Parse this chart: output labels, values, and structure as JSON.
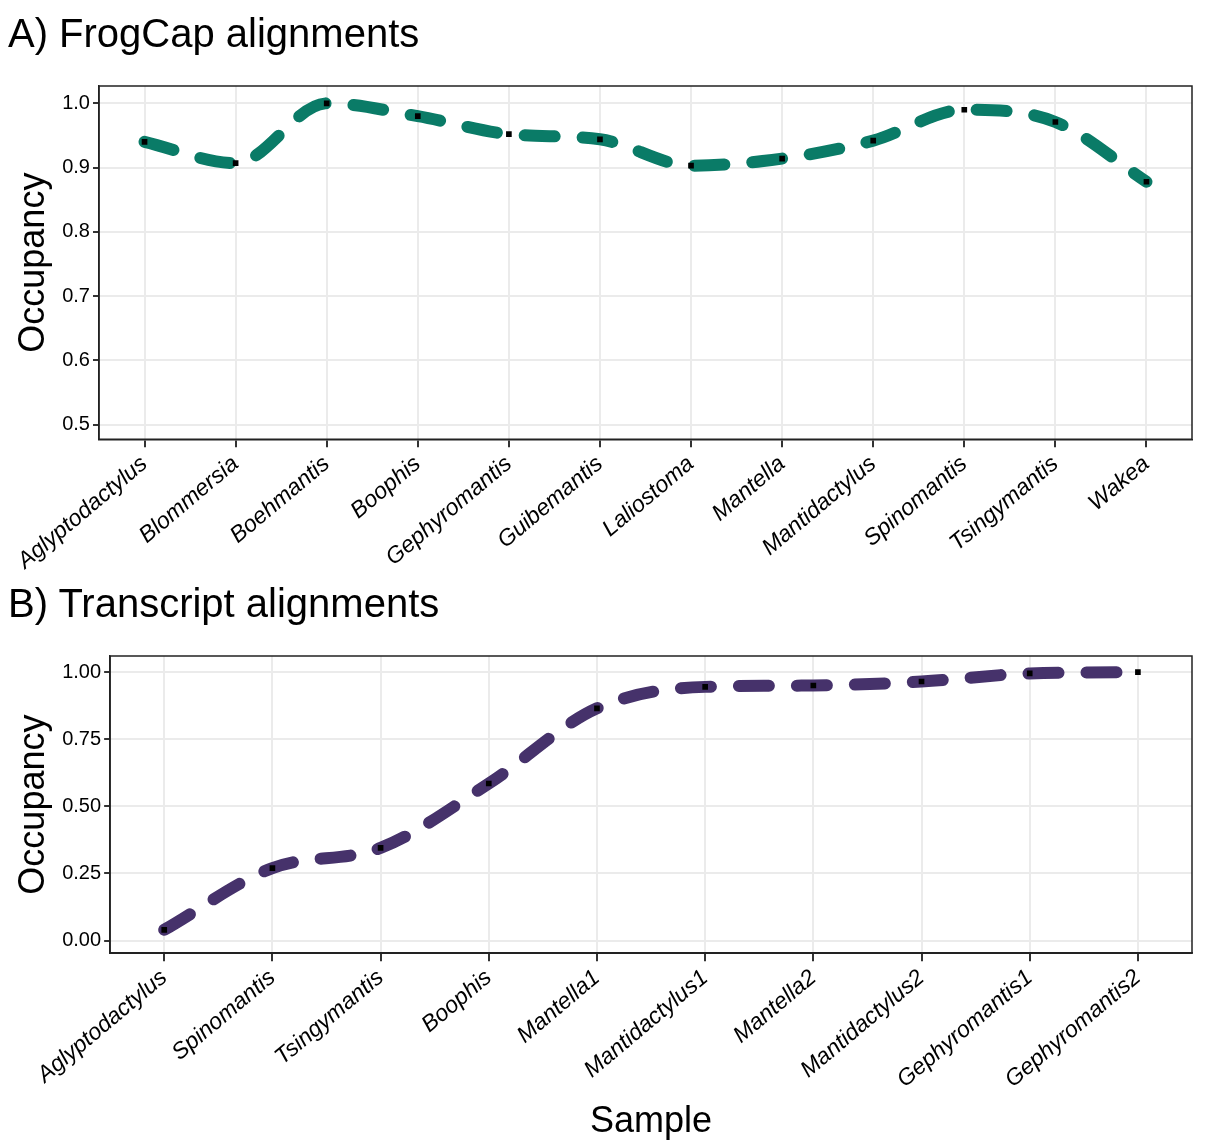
{
  "chart_data": [
    {
      "type": "line",
      "title": "A) FrogCap alignments",
      "ylabel": "Occupancy",
      "categories": [
        "Aglyptodactylus",
        "Blommersia",
        "Boehmantis",
        "Boophis",
        "Gephyromantis",
        "Guibemantis",
        "Laliostoma",
        "Mantella",
        "Mantidactylus",
        "Spinomantis",
        "Tsingymantis",
        "Wakea"
      ],
      "series": [
        {
          "color": "#0a7b67",
          "values": [
            0.94,
            0.907,
            1.0,
            0.98,
            0.952,
            0.944,
            0.903,
            0.914,
            0.942,
            0.99,
            0.971,
            0.878
          ]
        }
      ],
      "ylim": [
        0.477,
        1.027
      ],
      "yticks": [
        {
          "value": 0.5,
          "label": "0.5"
        },
        {
          "value": 0.6,
          "label": "0.6"
        },
        {
          "value": 0.7,
          "label": "0.7"
        },
        {
          "value": 0.8,
          "label": "0.8"
        },
        {
          "value": 0.9,
          "label": "0.9"
        },
        {
          "value": 1.0,
          "label": "1.0"
        }
      ],
      "grid": true,
      "legend": false,
      "marker": "square",
      "line_style": "dashed"
    },
    {
      "type": "line",
      "title": "B) Transcript alignments",
      "xlabel": "Sample",
      "ylabel": "Occupancy",
      "categories": [
        "Aglyptodactylus",
        "Spinomantis",
        "Tsingymantis",
        "Boophis",
        "Mantella1",
        "Mantidactylus1",
        "Mantella2",
        "Mantidactylus2",
        "Gephyromantis1",
        "Gephyromantis2"
      ],
      "series": [
        {
          "color": "#46326b",
          "values": [
            0.04,
            0.27,
            0.345,
            0.585,
            0.865,
            0.945,
            0.95,
            0.965,
            0.995,
            1.0
          ]
        }
      ],
      "ylim": [
        -0.047,
        1.06
      ],
      "yticks": [
        {
          "value": 0,
          "label": "0.00"
        },
        {
          "value": 0.25,
          "label": "0.25"
        },
        {
          "value": 0.5,
          "label": "0.50"
        },
        {
          "value": 0.75,
          "label": "0.75"
        },
        {
          "value": 1.0,
          "label": "1.00"
        }
      ],
      "grid": true,
      "legend": false,
      "marker": "square",
      "line_style": "dashed"
    }
  ]
}
